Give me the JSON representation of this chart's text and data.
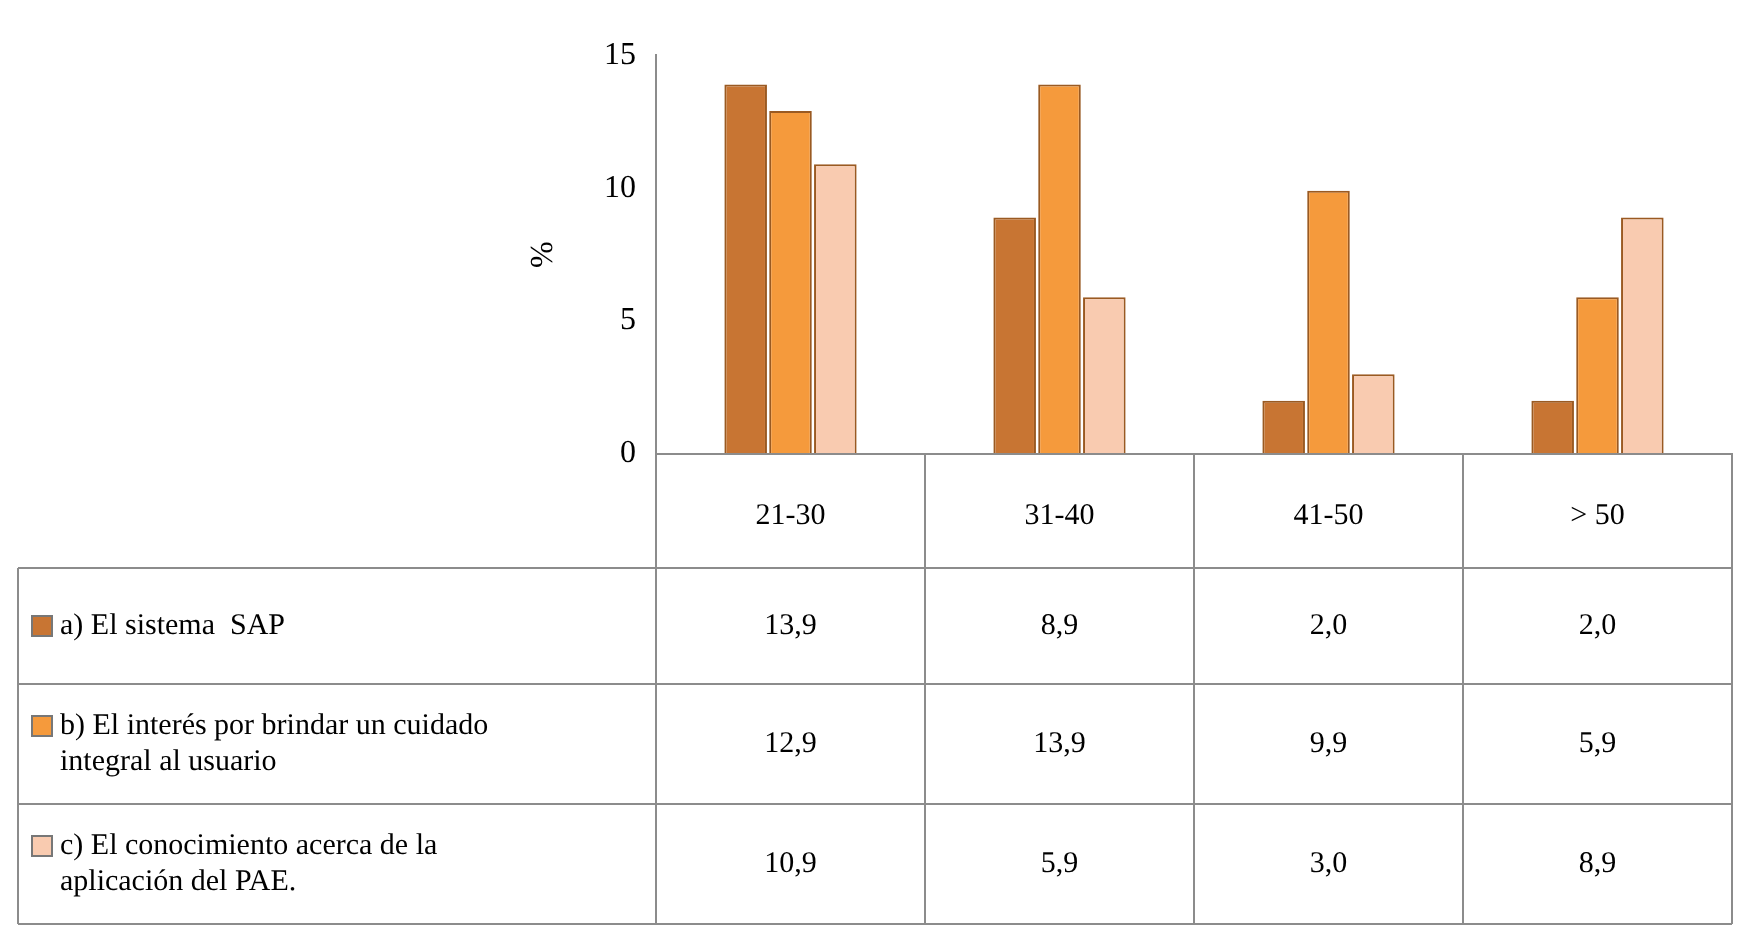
{
  "chart_data": {
    "type": "bar",
    "ylabel": "%",
    "categories": [
      "21-30",
      "31-40",
      "41-50",
      "> 50"
    ],
    "ylim": [
      0,
      15
    ],
    "yticks": [
      0,
      5,
      10,
      15
    ],
    "legend": "bottom",
    "series": [
      {
        "name": "a) El sistema  SAP",
        "color": "#c87533",
        "values": [
          13.9,
          8.9,
          2.0,
          2.0
        ],
        "value_labels": [
          "13,9",
          "8,9",
          "2,0",
          "2,0"
        ]
      },
      {
        "name": "b) El interés por brindar un cuidado integral al usuario",
        "color": "#f59a3c",
        "values": [
          12.9,
          13.9,
          9.9,
          5.9
        ],
        "value_labels": [
          "12,9",
          "13,9",
          "9,9",
          "5,9"
        ]
      },
      {
        "name": "c) El conocimiento acerca de la aplicación del PAE.",
        "color": "#f9cbb0",
        "values": [
          10.9,
          5.9,
          3.0,
          8.9
        ],
        "value_labels": [
          "10,9",
          "5,9",
          "3,0",
          "8,9"
        ]
      }
    ]
  }
}
